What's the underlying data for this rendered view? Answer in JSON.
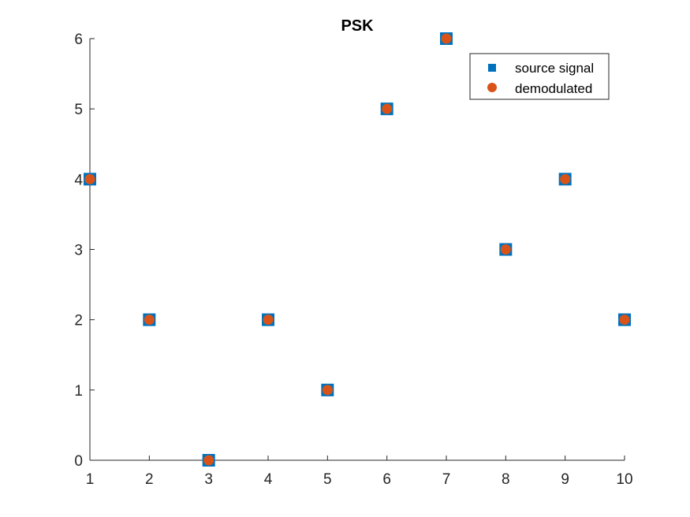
{
  "chart_data": {
    "type": "scatter",
    "title": "PSK",
    "xlabel": "",
    "ylabel": "",
    "xlim": [
      1,
      10
    ],
    "ylim": [
      0,
      6
    ],
    "xticks": [
      1,
      2,
      3,
      4,
      5,
      6,
      7,
      8,
      9,
      10
    ],
    "yticks": [
      0,
      1,
      2,
      3,
      4,
      5,
      6
    ],
    "grid": false,
    "legend_position": "top-right",
    "x": [
      1,
      2,
      3,
      4,
      5,
      6,
      7,
      8,
      9,
      10
    ],
    "series": [
      {
        "name": "source signal",
        "marker": "square",
        "color": "#0072BD",
        "values": [
          4,
          2,
          0,
          2,
          1,
          5,
          6,
          3,
          4,
          2
        ]
      },
      {
        "name": "demodulated",
        "marker": "circle",
        "color": "#D95319",
        "values": [
          4,
          2,
          0,
          2,
          1,
          5,
          6,
          3,
          4,
          2
        ]
      }
    ]
  }
}
